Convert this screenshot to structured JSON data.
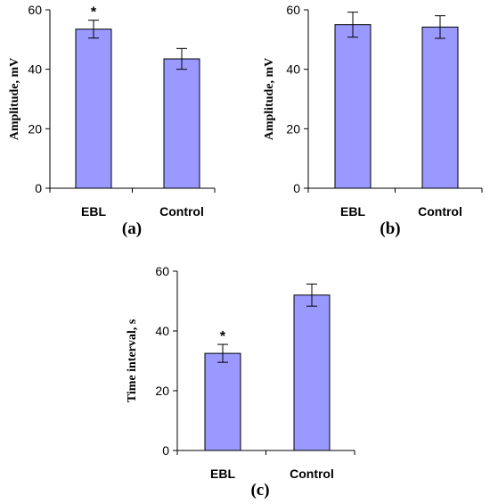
{
  "chart_data": [
    {
      "type": "bar",
      "panel_label": "(a)",
      "ylabel": "Amplitude, mV",
      "categories": [
        "EBL",
        "Control"
      ],
      "values": [
        53.5,
        43.5
      ],
      "errors": [
        3,
        3.5
      ],
      "significance": [
        "*",
        ""
      ],
      "ylim": [
        0,
        60
      ],
      "yticks": [
        "0",
        "20",
        "40",
        "60"
      ],
      "bar_color": "#9999ff",
      "grid": false
    },
    {
      "type": "bar",
      "panel_label": "(b)",
      "ylabel": "Amplitude, mV",
      "categories": [
        "EBL",
        "Control"
      ],
      "values": [
        55,
        54.2
      ],
      "errors": [
        4.2,
        3.8
      ],
      "significance": [
        "",
        ""
      ],
      "ylim": [
        0,
        60
      ],
      "yticks": [
        "0",
        "20",
        "40",
        "60"
      ],
      "bar_color": "#9999ff",
      "grid": false
    },
    {
      "type": "bar",
      "panel_label": "(c)",
      "ylabel": "Time interval, s",
      "categories": [
        "EBL",
        "Control"
      ],
      "values": [
        32.5,
        52
      ],
      "errors": [
        3,
        3.7
      ],
      "significance": [
        "*",
        ""
      ],
      "ylim": [
        0,
        60
      ],
      "yticks": [
        "0",
        "20",
        "40",
        "60"
      ],
      "bar_color": "#9999ff",
      "grid": false
    }
  ]
}
